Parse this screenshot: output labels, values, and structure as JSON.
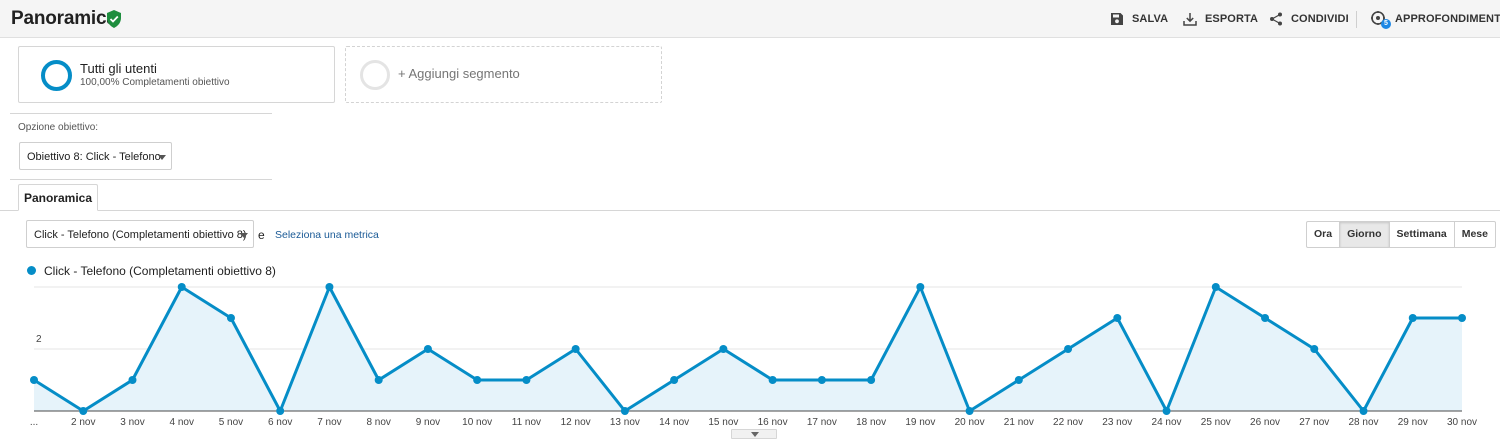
{
  "header": {
    "title": "Panoramica",
    "actions": {
      "save": "SALVA",
      "export": "ESPORTA",
      "share": "CONDIVIDI",
      "insights": "APPROFONDIMENTI",
      "insights_badge": "5"
    }
  },
  "segments": {
    "active": {
      "name": "Tutti gli utenti",
      "subtitle": "100,00% Completamenti obiettivo"
    },
    "add_label": "+ Aggiungi segmento"
  },
  "goal_option": {
    "label": "Opzione obiettivo:",
    "selected": "Obiettivo 8: Click - Telefono"
  },
  "tabs": [
    {
      "label": "Panoramica"
    }
  ],
  "metric": {
    "selected": "Click - Telefono (Completamenti obiettivo 8)",
    "connector": "e",
    "link": "Seleziona una metrica"
  },
  "periods": [
    {
      "label": "Ora",
      "active": false
    },
    {
      "label": "Giorno",
      "active": true
    },
    {
      "label": "Settimana",
      "active": false
    },
    {
      "label": "Mese",
      "active": false
    }
  ],
  "colors": {
    "series": "#058dc7",
    "area": "#e6f3fa",
    "accent_link": "#1a5a96",
    "verified": "#1e8e3e"
  },
  "chart_data": {
    "type": "area",
    "categories": [
      "...",
      "2 nov",
      "3 nov",
      "4 nov",
      "5 nov",
      "6 nov",
      "7 nov",
      "8 nov",
      "9 nov",
      "10 nov",
      "11 nov",
      "12 nov",
      "13 nov",
      "14 nov",
      "15 nov",
      "16 nov",
      "17 nov",
      "18 nov",
      "19 nov",
      "20 nov",
      "21 nov",
      "22 nov",
      "23 nov",
      "24 nov",
      "25 nov",
      "26 nov",
      "27 nov",
      "28 nov",
      "29 nov",
      "30 nov"
    ],
    "series": [
      {
        "name": "Click - Telefono (Completamenti obiettivo 8)",
        "values": [
          1,
          0,
          1,
          4,
          3,
          0,
          4,
          1,
          2,
          1,
          1,
          2,
          0,
          1,
          2,
          1,
          1,
          1,
          4,
          0,
          1,
          2,
          3,
          0,
          4,
          3,
          2,
          0,
          3,
          3
        ]
      }
    ],
    "yticks": [
      2,
      4
    ],
    "ylim": [
      0,
      4
    ],
    "grid": true,
    "legend": "top-left"
  }
}
